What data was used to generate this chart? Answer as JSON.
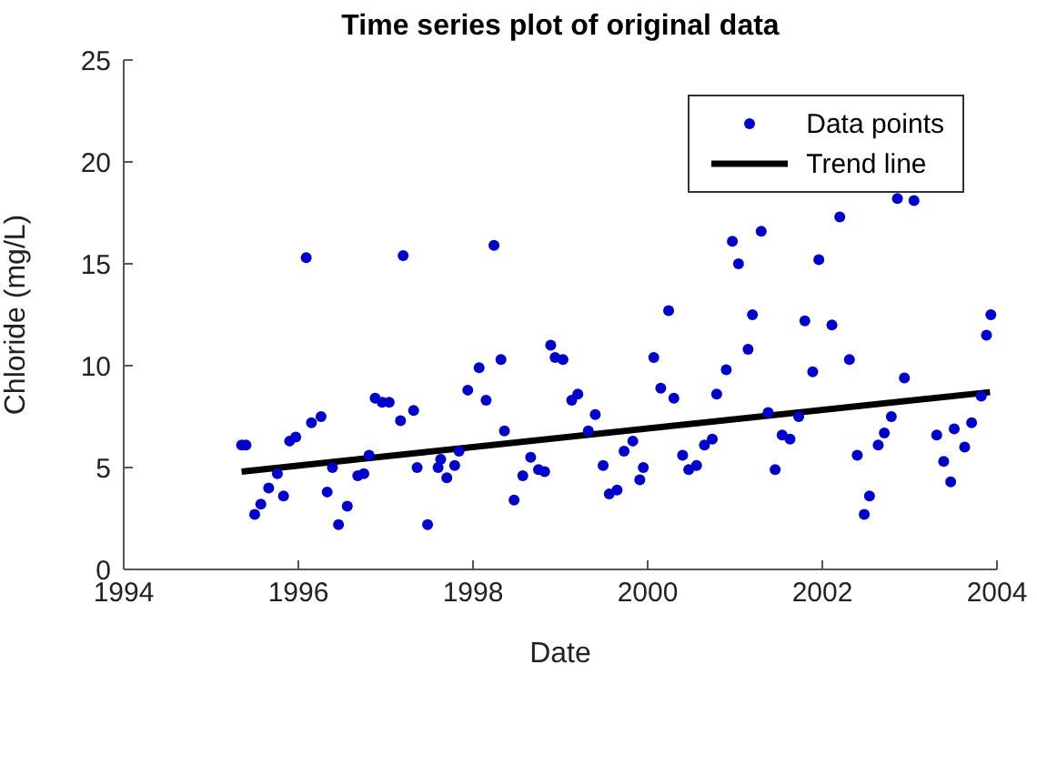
{
  "chart_data": {
    "type": "scatter",
    "title": "Time series plot of original data",
    "xlabel": "Date",
    "ylabel": "Chloride (mg/L)",
    "xlim": [
      1994,
      2004
    ],
    "xticks": [
      1994,
      1996,
      1998,
      2000,
      2002,
      2004
    ],
    "ylim": [
      0,
      25
    ],
    "yticks": [
      0,
      5,
      10,
      15,
      20,
      25
    ],
    "grid": false,
    "legend": "top right",
    "series": [
      {
        "name": "Data points",
        "marker": "circle",
        "color": "#0000cc",
        "x": [
          1995.35,
          1995.4,
          1995.5,
          1995.57,
          1995.66,
          1995.76,
          1995.83,
          1995.9,
          1995.97,
          1996.09,
          1996.15,
          1996.26,
          1996.33,
          1996.39,
          1996.46,
          1996.56,
          1996.68,
          1996.75,
          1996.81,
          1996.88,
          1996.96,
          1997.04,
          1997.17,
          1997.2,
          1997.32,
          1997.36,
          1997.48,
          1997.6,
          1997.63,
          1997.7,
          1997.79,
          1997.84,
          1997.94,
          1998.07,
          1998.15,
          1998.24,
          1998.32,
          1998.36,
          1998.47,
          1998.57,
          1998.66,
          1998.75,
          1998.82,
          1998.89,
          1998.94,
          1999.03,
          1999.13,
          1999.2,
          1999.32,
          1999.4,
          1999.49,
          1999.56,
          1999.65,
          1999.73,
          1999.83,
          1999.91,
          1999.95,
          2000.07,
          2000.15,
          2000.24,
          2000.3,
          2000.4,
          2000.47,
          2000.56,
          2000.65,
          2000.74,
          2000.79,
          2000.9,
          2000.97,
          2001.04,
          2001.15,
          2001.2,
          2001.3,
          2001.38,
          2001.46,
          2001.54,
          2001.63,
          2001.73,
          2001.8,
          2001.89,
          2001.96,
          2002.11,
          2002.2,
          2002.31,
          2002.4,
          2002.48,
          2002.54,
          2002.64,
          2002.71,
          2002.79,
          2002.86,
          2002.94,
          2003.05,
          2003.31,
          2003.39,
          2003.47,
          2003.51,
          2003.63,
          2003.71,
          2003.82,
          2003.88,
          2003.93
        ],
        "values": [
          6.1,
          6.1,
          2.7,
          3.2,
          4,
          4.7,
          3.6,
          6.3,
          6.5,
          15.3,
          7.2,
          7.5,
          3.8,
          5,
          2.2,
          3.1,
          4.6,
          4.7,
          5.6,
          8.4,
          8.2,
          8.2,
          7.3,
          15.4,
          7.8,
          5,
          2.2,
          5,
          5.4,
          4.5,
          5.1,
          5.8,
          8.8,
          9.9,
          8.3,
          15.9,
          10.3,
          6.8,
          3.4,
          4.6,
          5.5,
          4.9,
          4.8,
          11,
          10.4,
          10.3,
          8.3,
          8.6,
          6.8,
          7.6,
          5.1,
          3.7,
          3.9,
          5.8,
          6.3,
          4.4,
          5,
          10.4,
          8.9,
          12.7,
          8.4,
          5.6,
          4.9,
          5.1,
          6.1,
          6.4,
          8.6,
          9.8,
          16.1,
          15,
          10.8,
          12.5,
          16.6,
          7.7,
          4.9,
          6.6,
          6.4,
          7.5,
          12.2,
          9.7,
          15.2,
          12,
          17.3,
          10.3,
          5.6,
          2.7,
          3.6,
          6.1,
          6.7,
          7.5,
          18.2,
          9.4,
          18.1,
          6.6,
          5.3,
          4.3,
          6.9,
          6,
          7.2,
          8.5,
          11.5,
          12.5
        ]
      },
      {
        "name": "Trend line",
        "type": "line",
        "marker": "none",
        "line_style": "solid",
        "color": "#000000",
        "x": [
          1995.35,
          2003.92
        ],
        "values": [
          4.8,
          8.7
        ]
      }
    ]
  }
}
